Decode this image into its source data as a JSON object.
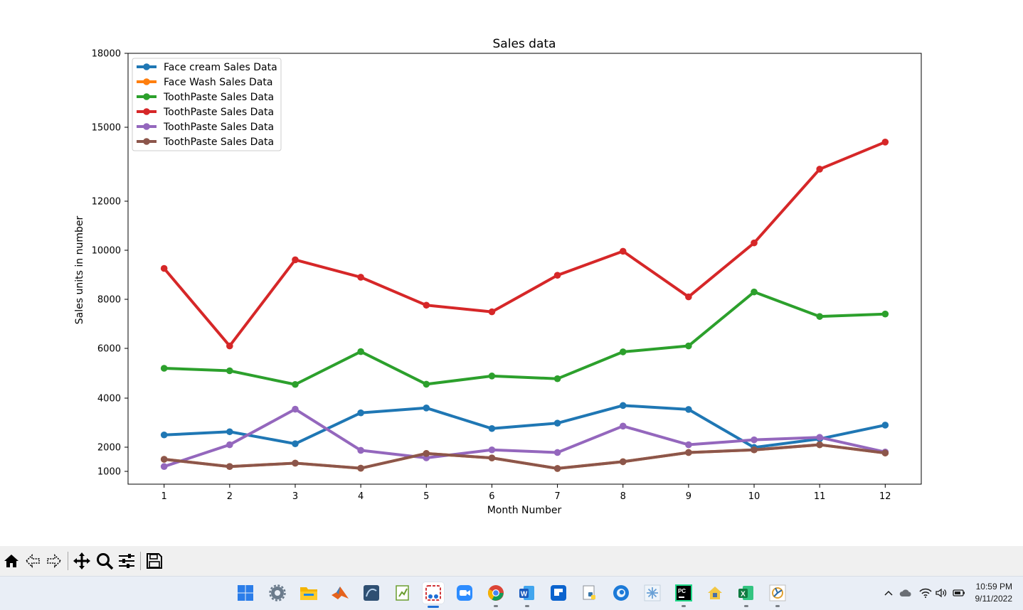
{
  "chart_data": {
    "type": "line",
    "title": "Sales data",
    "xlabel": "Month Number",
    "ylabel": "Sales units in number",
    "x": [
      1,
      2,
      3,
      4,
      5,
      6,
      7,
      8,
      9,
      10,
      11,
      12
    ],
    "x_ticks": [
      "1",
      "2",
      "3",
      "4",
      "5",
      "6",
      "7",
      "8",
      "9",
      "10",
      "11",
      "12"
    ],
    "xlim": [
      0.45,
      12.55
    ],
    "y_ticks": [
      1000,
      2000,
      4000,
      6000,
      8000,
      10000,
      12000,
      15000,
      18000
    ],
    "y_tick_labels": [
      "1000",
      "2000",
      "4000",
      "6000",
      "8000",
      "10000",
      "12000",
      "15000",
      "18000"
    ],
    "ylim": [
      500,
      18000
    ],
    "grid": false,
    "legend_position": "upper left",
    "series": [
      {
        "name": "Face cream Sales Data",
        "color": "#1f77b4",
        "values": [
          2500,
          2630,
          2140,
          3400,
          3600,
          2760,
          2980,
          3700,
          3540,
          1990,
          2340,
          2900
        ]
      },
      {
        "name": "Face Wash Sales Data",
        "color": "#ff7f0e",
        "values": [
          1500,
          1200,
          1340,
          1130,
          1740,
          1555,
          1120,
          1400,
          1780,
          1890,
          2100,
          1760
        ]
      },
      {
        "name": "ToothPaste Sales Data",
        "color": "#2ca02c",
        "values": [
          5200,
          5100,
          4550,
          5870,
          4560,
          4890,
          4780,
          5860,
          6100,
          8300,
          7300,
          7400
        ]
      },
      {
        "name": "ToothPaste Sales Data",
        "color": "#d62728",
        "values": [
          9260,
          6100,
          9610,
          8900,
          7760,
          7490,
          8980,
          9960,
          8100,
          10300,
          13300,
          14400
        ]
      },
      {
        "name": "ToothPaste Sales Data",
        "color": "#9467bd",
        "values": [
          1200,
          2100,
          3550,
          1870,
          1560,
          1890,
          1780,
          2860,
          2100,
          2300,
          2400,
          1800
        ]
      },
      {
        "name": "ToothPaste Sales Data",
        "color": "#8c564b",
        "values": [
          1500,
          1200,
          1340,
          1130,
          1740,
          1555,
          1120,
          1400,
          1780,
          1890,
          2100,
          1760
        ]
      }
    ]
  },
  "toolbar": {
    "buttons": [
      "home-icon",
      "back-icon",
      "forward-icon",
      "pan-icon",
      "zoom-icon",
      "configure-subplots-icon",
      "save-icon"
    ]
  },
  "taskbar": {
    "apps": [
      "start-icon",
      "settings-icon",
      "file-explorer-icon",
      "matlab-icon",
      "mysql-workbench-icon",
      "notepad-plus-plus-icon",
      "snipping-tool-icon",
      "zoom-icon",
      "chrome-icon",
      "word-icon",
      "photos-icon",
      "python-idle-icon",
      "edge-icon",
      "snowflake-icon",
      "pycharm-icon",
      "vpn-icon",
      "excel-icon",
      "matplotlib-figure-icon"
    ],
    "time": "10:59 PM",
    "date": "9/11/2022"
  }
}
